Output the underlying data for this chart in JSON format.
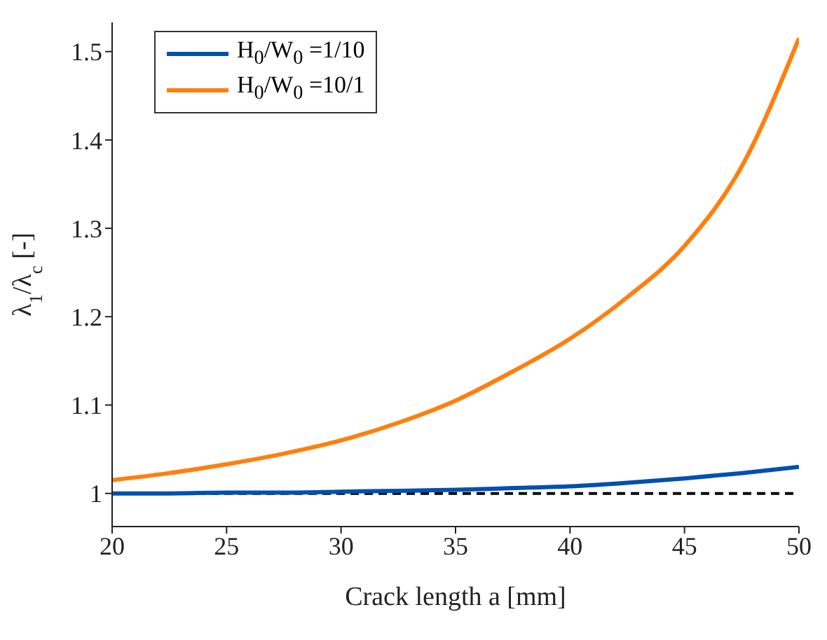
{
  "chart_data": {
    "type": "line",
    "xlabel": "Crack length a [mm]",
    "ylabel": "λ$_{1}$/λ$_{c}$ [-]",
    "x": [
      20,
      22.5,
      25,
      27.5,
      30,
      32.5,
      35,
      37.5,
      40,
      42.5,
      45,
      47.5,
      50
    ],
    "series": [
      {
        "name": "H$_{0}$/W$_{0}$ =1/10",
        "color": "#0050b0",
        "values": [
          1.0,
          1.0,
          1.001,
          1.001,
          1.002,
          1.003,
          1.004,
          1.006,
          1.008,
          1.012,
          1.017,
          1.023,
          1.03
        ]
      },
      {
        "name": "H$_{0}$/W$_{0}$ =10/1",
        "color": "#ff7f0e",
        "values": [
          1.015,
          1.023,
          1.033,
          1.045,
          1.06,
          1.08,
          1.105,
          1.138,
          1.175,
          1.222,
          1.28,
          1.37,
          1.515
        ]
      }
    ],
    "xlim": [
      20,
      50
    ],
    "xticks": [
      20,
      25,
      30,
      35,
      40,
      45,
      50
    ],
    "ylim": [
      0.9625,
      1.533
    ],
    "yticks": [
      1,
      1.1,
      1.2,
      1.3,
      1.4,
      1.5
    ],
    "ref_lines": [
      {
        "axis": "y",
        "value": 1,
        "color": "#000000",
        "line_style": "dashed"
      }
    ],
    "legend": "top left",
    "grid": false,
    "marker": "none",
    "line_style": "solid"
  }
}
